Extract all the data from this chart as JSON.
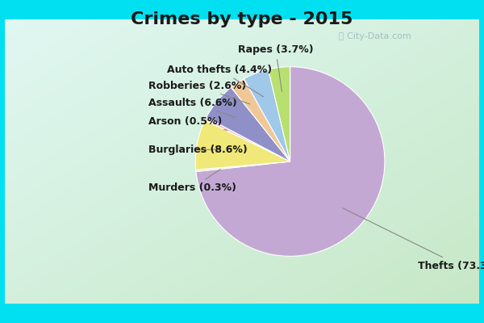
{
  "title": "Crimes by type - 2015",
  "title_fontsize": 16,
  "title_fontweight": "bold",
  "slices": [
    {
      "label": "Thefts",
      "pct": 73.3,
      "color": "#c4a8d4"
    },
    {
      "label": "Murders",
      "pct": 0.3,
      "color": "#d0e8c0"
    },
    {
      "label": "Burglaries",
      "pct": 8.6,
      "color": "#f0e878"
    },
    {
      "label": "Arson",
      "pct": 0.5,
      "color": "#f0c0cc"
    },
    {
      "label": "Assaults",
      "pct": 6.6,
      "color": "#9090c8"
    },
    {
      "label": "Robberies",
      "pct": 2.6,
      "color": "#f0c898"
    },
    {
      "label": "Auto thefts",
      "pct": 4.4,
      "color": "#a0c8e8"
    },
    {
      "label": "Rapes",
      "pct": 3.7,
      "color": "#b8e070"
    }
  ],
  "background_cyan": "#00e0f0",
  "background_body_top": "#e8f8f8",
  "background_body_bot": "#c8e8c8",
  "label_fontsize": 9,
  "startangle": 90
}
